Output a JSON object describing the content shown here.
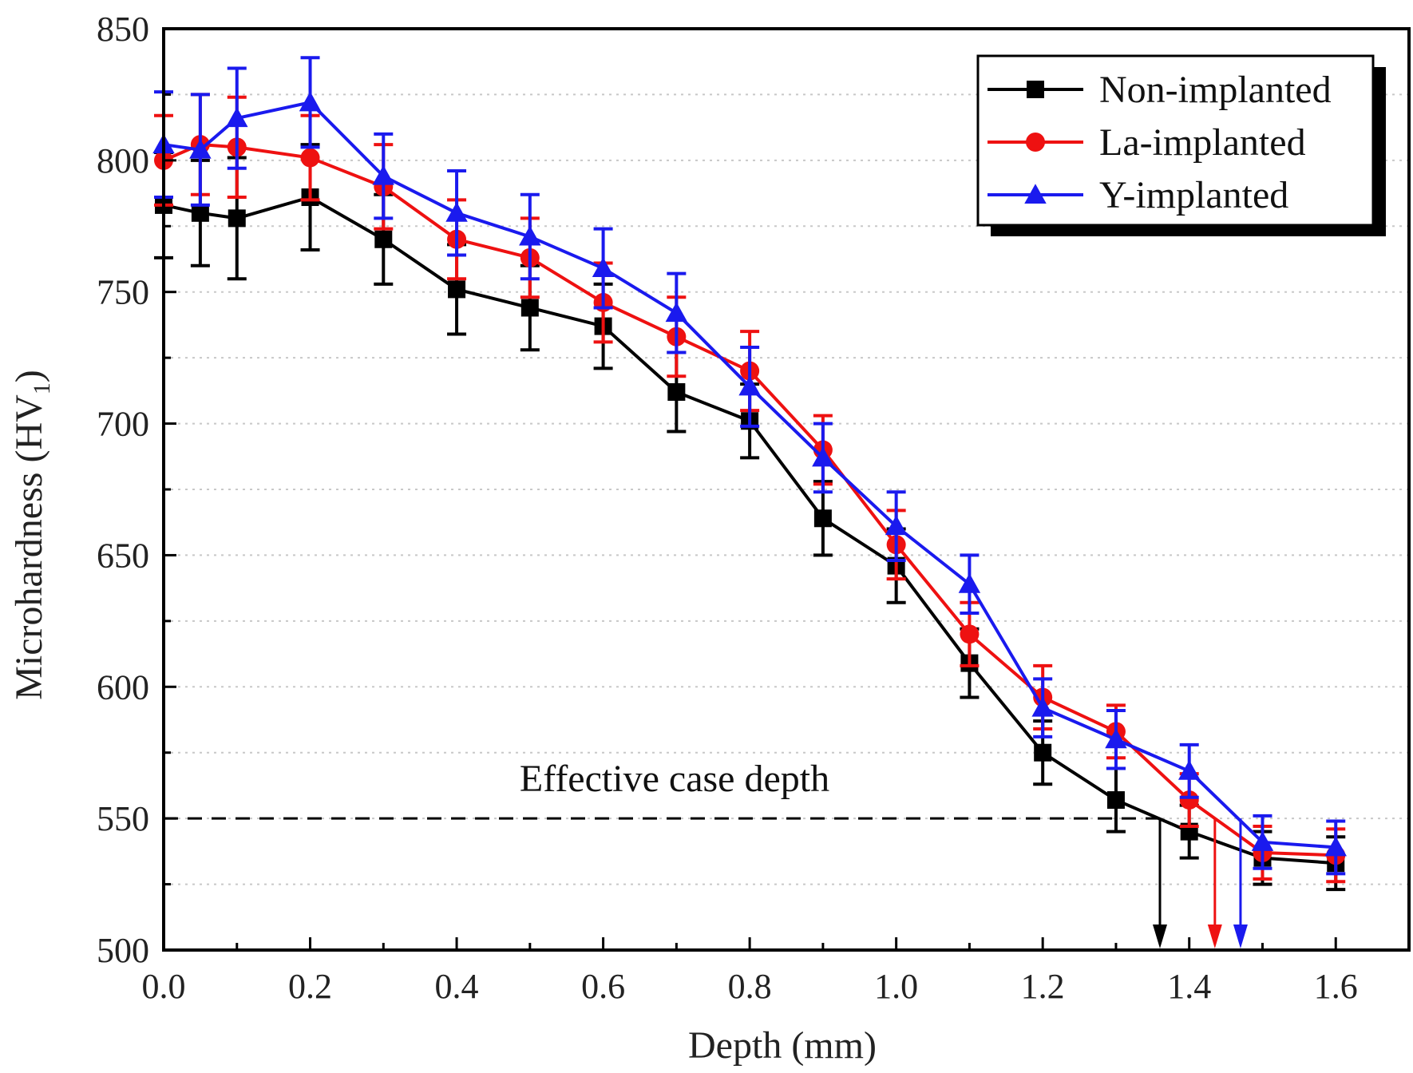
{
  "chart_data": {
    "type": "line",
    "title": "",
    "xlabel": "Depth (mm)",
    "ylabel_main": "Microhardness (HV",
    "ylabel_sub": "1",
    "ylabel_close": ")",
    "xlim": [
      0.0,
      1.7
    ],
    "ylim": [
      500,
      850
    ],
    "xticks": [
      0.0,
      0.2,
      0.4,
      0.6,
      0.8,
      1.0,
      1.2,
      1.4,
      1.6
    ],
    "xtick_labels": [
      "0.0",
      "0.2",
      "0.4",
      "0.6",
      "0.8",
      "1.0",
      "1.2",
      "1.4",
      "1.6"
    ],
    "yticks": [
      500,
      550,
      600,
      650,
      700,
      750,
      800,
      850
    ],
    "ytick_labels": [
      "500",
      "550",
      "600",
      "650",
      "700",
      "750",
      "800",
      "850"
    ],
    "grid": "horizontal dotted every 25",
    "legend_position": "top-right",
    "x": [
      0.0,
      0.05,
      0.1,
      0.2,
      0.3,
      0.4,
      0.5,
      0.6,
      0.7,
      0.8,
      0.9,
      1.0,
      1.1,
      1.2,
      1.3,
      1.4,
      1.5,
      1.6
    ],
    "series": [
      {
        "name": "Non-implanted",
        "color": "#000000",
        "marker": "square",
        "values": [
          783,
          780,
          778,
          786,
          770,
          751,
          744,
          737,
          712,
          701,
          664,
          646,
          609,
          575,
          557,
          545,
          535,
          533
        ],
        "errors": [
          20,
          20,
          23,
          20,
          17,
          17,
          16,
          16,
          15,
          14,
          14,
          14,
          13,
          12,
          12,
          10,
          10,
          10
        ]
      },
      {
        "name": "La-implanted",
        "color": "#ee1111",
        "marker": "circle",
        "values": [
          800,
          806,
          805,
          801,
          790,
          770,
          763,
          746,
          733,
          720,
          690,
          654,
          620,
          596,
          583,
          557,
          537,
          536
        ],
        "errors": [
          17,
          19,
          19,
          16,
          16,
          15,
          15,
          15,
          15,
          15,
          13,
          13,
          12,
          12,
          10,
          10,
          10,
          10
        ]
      },
      {
        "name": "Y-implanted",
        "color": "#1a1aee",
        "marker": "triangle",
        "values": [
          806,
          804,
          816,
          822,
          794,
          780,
          771,
          759,
          742,
          714,
          687,
          661,
          639,
          592,
          580,
          568,
          541,
          539
        ],
        "errors": [
          20,
          21,
          19,
          17,
          16,
          16,
          16,
          15,
          15,
          15,
          13,
          13,
          11,
          11,
          11,
          10,
          10,
          10
        ]
      }
    ],
    "reference_line": {
      "y": 550,
      "label": "Effective case depth"
    },
    "case_depth_arrows": [
      {
        "series": "Non-implanted",
        "x": 1.36,
        "color": "#000000"
      },
      {
        "series": "La-implanted",
        "x": 1.435,
        "color": "#ee1111"
      },
      {
        "series": "Y-implanted",
        "x": 1.47,
        "color": "#1a1aee"
      }
    ]
  }
}
